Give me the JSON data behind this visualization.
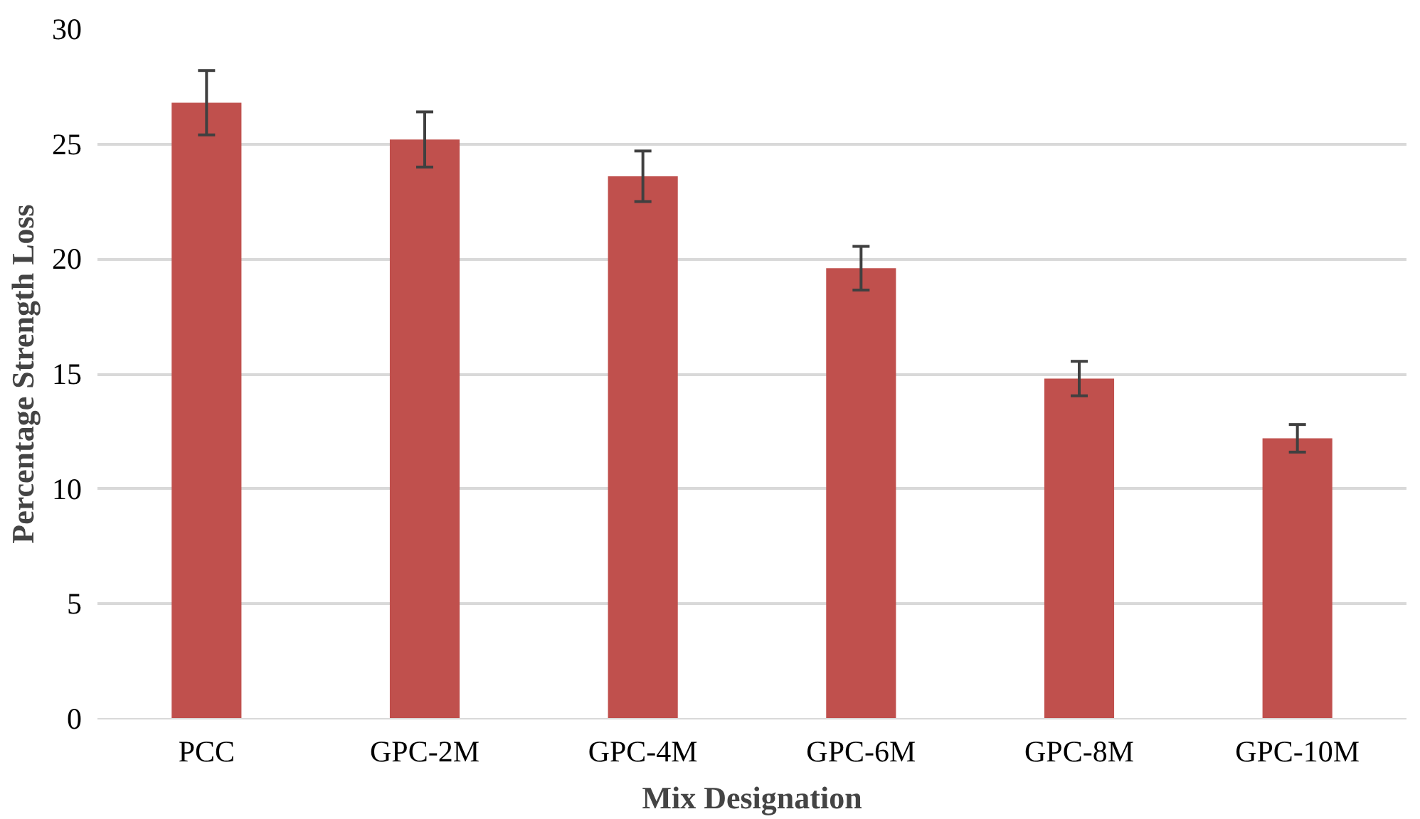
{
  "chart_data": {
    "type": "bar",
    "xlabel": "Mix Designation",
    "ylabel": "Percentage Strength Loss",
    "categories": [
      "PCC",
      "GPC-2M",
      "GPC-4M",
      "GPC-6M",
      "GPC-8M",
      "GPC-10M"
    ],
    "values": [
      26.8,
      25.2,
      23.6,
      19.6,
      14.8,
      12.2
    ],
    "errors": [
      1.4,
      1.2,
      1.1,
      0.95,
      0.75,
      0.6
    ],
    "color": "#c0504d",
    "ylim": [
      0,
      30
    ],
    "yticks": [
      0,
      5,
      10,
      15,
      20,
      25,
      30
    ],
    "grid": "y"
  }
}
